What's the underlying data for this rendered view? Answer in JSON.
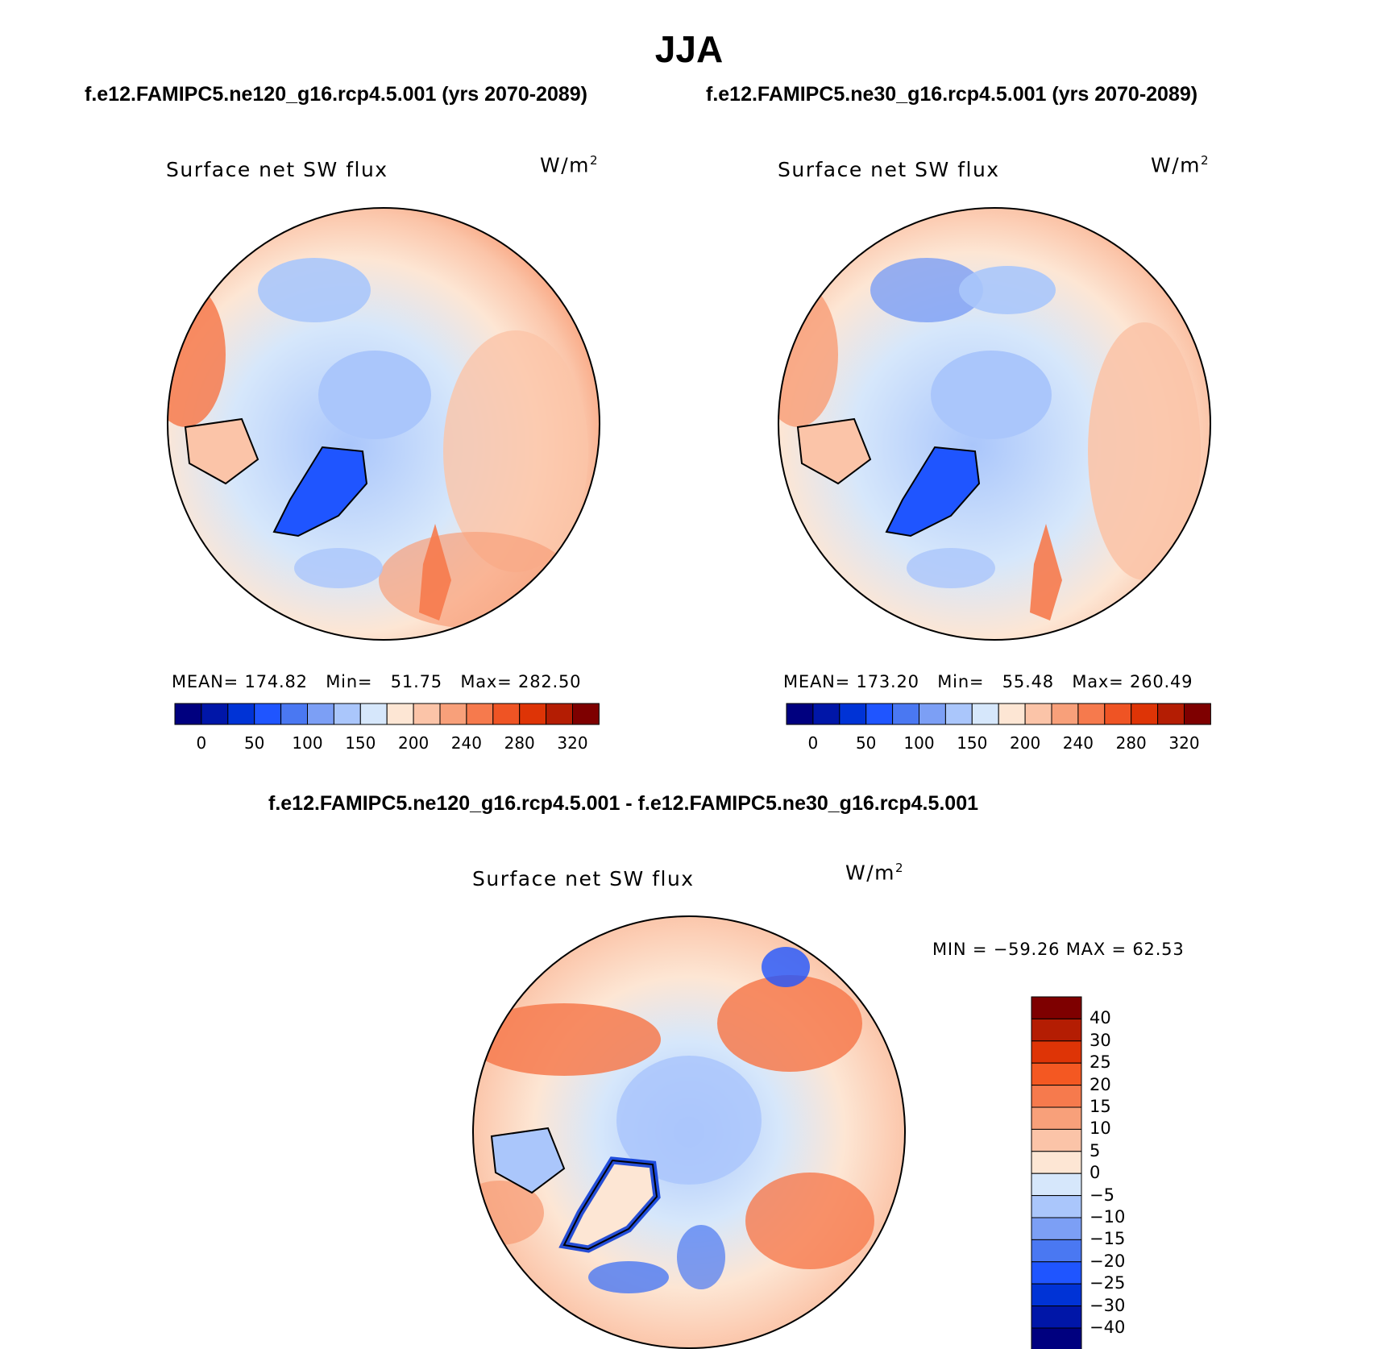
{
  "main_title": "JJA",
  "subtitles": {
    "left": "f.e12.FAMIPC5.ne120_g16.rcp4.5.001 (yrs 2070-2089)",
    "right": "f.e12.FAMIPC5.ne30_g16.rcp4.5.001 (yrs 2070-2089)",
    "difference": "f.e12.FAMIPC5.ne120_g16.rcp4.5.001 - f.e12.FAMIPC5.ne30_g16.rcp4.5.001"
  },
  "panels": [
    {
      "title": "Surface net SW flux",
      "units_base": "W/m",
      "units_exp": "2",
      "stats": {
        "mean_label": "MEAN=",
        "mean": "174.82",
        "min_label": "Min=",
        "min": "51.75",
        "max_label": "Max=",
        "max": "282.50"
      }
    },
    {
      "title": "Surface net SW flux",
      "units_base": "W/m",
      "units_exp": "2",
      "stats": {
        "mean_label": "MEAN=",
        "mean": "173.20",
        "min_label": "Min=",
        "min": "55.48",
        "max_label": "Max=",
        "max": "260.49"
      }
    },
    {
      "title": "Surface net SW flux",
      "units_base": "W/m",
      "units_exp": "2",
      "stats": {
        "text": "MIN = −59.26 MAX =   62.53"
      }
    }
  ],
  "abs_colorbar": {
    "colors": [
      "#00007f",
      "#0016a8",
      "#0033d6",
      "#1f55ff",
      "#4a78f2",
      "#7c9ff5",
      "#aac6fb",
      "#d6e7fb",
      "#fde6d4",
      "#fbc4a8",
      "#f8a07a",
      "#f67a4d",
      "#ef5424",
      "#de3406",
      "#b41d03",
      "#7e0000"
    ],
    "ticks": [
      "0",
      "50",
      "100",
      "150",
      "200",
      "240",
      "280",
      "320"
    ]
  },
  "diff_colorbar": {
    "colors": [
      "#7e0000",
      "#b41d03",
      "#de3406",
      "#f45822",
      "#f67a4d",
      "#f8a07a",
      "#fbc4a8",
      "#fde6d4",
      "#d6e7fb",
      "#aac6fb",
      "#7c9ff5",
      "#4a78f2",
      "#1f55ff",
      "#0033d6",
      "#0016a8",
      "#00007f"
    ],
    "ticks": [
      "40",
      "30",
      "25",
      "20",
      "15",
      "10",
      "5",
      "0",
      "−5",
      "−10",
      "−15",
      "−20",
      "−25",
      "−30",
      "−40"
    ]
  }
}
